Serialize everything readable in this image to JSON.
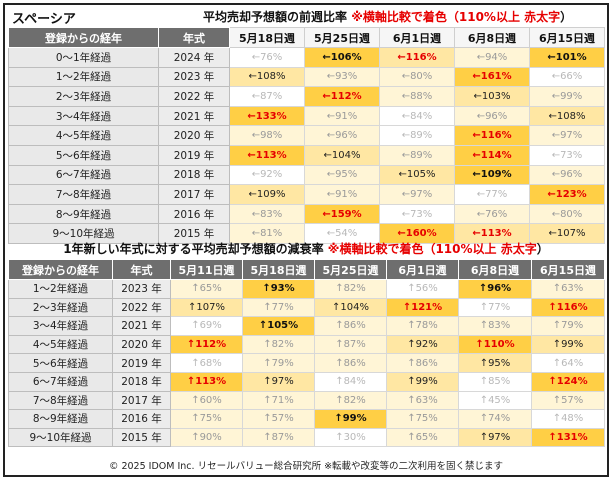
{
  "brand": "スペーシア",
  "table1": {
    "title": "平均売却予想額の前週比率",
    "note": "※横軸比較で着色（110%以上",
    "note_red": "赤太字",
    "note_end": "）",
    "headers": [
      "登録からの経年",
      "年式",
      "5月18日週",
      "5月25日週",
      "6月1日週",
      "6月8日週",
      "6月15日週"
    ],
    "rows": [
      {
        "label": "0～1年経過",
        "year": "2024 年",
        "cells": [
          "←76%",
          "←106%",
          "←116%",
          "←94%",
          "←101%"
        ],
        "levels": [
          0,
          3,
          2,
          1,
          3
        ],
        "hot": [
          false,
          false,
          true,
          false,
          false
        ]
      },
      {
        "label": "1～2年経過",
        "year": "2023 年",
        "cells": [
          "←108%",
          "←93%",
          "←80%",
          "←161%",
          "←66%"
        ],
        "levels": [
          2,
          1,
          1,
          3,
          0
        ],
        "hot": [
          false,
          false,
          false,
          true,
          false
        ]
      },
      {
        "label": "2～3年経過",
        "year": "2022 年",
        "cells": [
          "←87%",
          "←112%",
          "←88%",
          "←103%",
          "←99%"
        ],
        "levels": [
          0,
          3,
          1,
          2,
          1
        ],
        "hot": [
          false,
          true,
          false,
          false,
          false
        ]
      },
      {
        "label": "3～4年経過",
        "year": "2021 年",
        "cells": [
          "←133%",
          "←91%",
          "←84%",
          "←96%",
          "←108%"
        ],
        "levels": [
          3,
          1,
          0,
          1,
          2
        ],
        "hot": [
          true,
          false,
          false,
          false,
          false
        ]
      },
      {
        "label": "4～5年経過",
        "year": "2020 年",
        "cells": [
          "←98%",
          "←96%",
          "←89%",
          "←116%",
          "←97%"
        ],
        "levels": [
          1,
          1,
          0,
          3,
          1
        ],
        "hot": [
          false,
          false,
          false,
          true,
          false
        ]
      },
      {
        "label": "5～6年経過",
        "year": "2019 年",
        "cells": [
          "←113%",
          "←104%",
          "←89%",
          "←114%",
          "←73%"
        ],
        "levels": [
          3,
          2,
          1,
          3,
          0
        ],
        "hot": [
          true,
          false,
          false,
          true,
          false
        ]
      },
      {
        "label": "6～7年経過",
        "year": "2018 年",
        "cells": [
          "←92%",
          "←95%",
          "←105%",
          "←109%",
          "←96%"
        ],
        "levels": [
          0,
          1,
          2,
          3,
          1
        ],
        "hot": [
          false,
          false,
          false,
          false,
          false
        ]
      },
      {
        "label": "7～8年経過",
        "year": "2017 年",
        "cells": [
          "←109%",
          "←91%",
          "←97%",
          "←77%",
          "←123%"
        ],
        "levels": [
          2,
          1,
          1,
          0,
          3
        ],
        "hot": [
          false,
          false,
          false,
          false,
          true
        ]
      },
      {
        "label": "8～9年経過",
        "year": "2016 年",
        "cells": [
          "←83%",
          "←159%",
          "←73%",
          "←76%",
          "←80%"
        ],
        "levels": [
          1,
          3,
          0,
          1,
          1
        ],
        "hot": [
          false,
          true,
          false,
          false,
          false
        ]
      },
      {
        "label": "9～10年経過",
        "year": "2015 年",
        "cells": [
          "←81%",
          "←54%",
          "←160%",
          "←113%",
          "←107%"
        ],
        "levels": [
          1,
          0,
          3,
          2,
          2
        ],
        "hot": [
          false,
          false,
          true,
          true,
          false
        ]
      }
    ]
  },
  "table2": {
    "title": "1年新しい年式に対する平均売却予想額の減衰率",
    "note": "※横軸比較で着色（110%以上",
    "note_red": "赤太字",
    "note_end": "）",
    "headers": [
      "登録からの経年",
      "年式",
      "5月11日週",
      "5月18日週",
      "5月25日週",
      "6月1日週",
      "6月8日週",
      "6月15日週"
    ],
    "rows": [
      {
        "label": "1～2年経過",
        "year": "2023 年",
        "cells": [
          "↑65%",
          "↑93%",
          "↑82%",
          "↑56%",
          "↑96%",
          "↑63%"
        ],
        "levels": [
          1,
          3,
          1,
          0,
          3,
          1
        ],
        "hot": [
          false,
          false,
          false,
          false,
          false,
          false
        ]
      },
      {
        "label": "2～3年経過",
        "year": "2022 年",
        "cells": [
          "↑107%",
          "↑77%",
          "↑104%",
          "↑121%",
          "↑77%",
          "↑116%"
        ],
        "levels": [
          2,
          1,
          2,
          3,
          0,
          3
        ],
        "hot": [
          false,
          false,
          false,
          true,
          false,
          true
        ]
      },
      {
        "label": "3～4年経過",
        "year": "2021 年",
        "cells": [
          "↑69%",
          "↑105%",
          "↑86%",
          "↑78%",
          "↑83%",
          "↑79%"
        ],
        "levels": [
          0,
          3,
          1,
          1,
          1,
          1
        ],
        "hot": [
          false,
          false,
          false,
          false,
          false,
          false
        ]
      },
      {
        "label": "4～5年経過",
        "year": "2020 年",
        "cells": [
          "↑112%",
          "↑82%",
          "↑87%",
          "↑92%",
          "↑110%",
          "↑99%"
        ],
        "levels": [
          3,
          1,
          1,
          2,
          3,
          2
        ],
        "hot": [
          true,
          false,
          false,
          false,
          true,
          false
        ]
      },
      {
        "label": "5～6年経過",
        "year": "2019 年",
        "cells": [
          "↑68%",
          "↑79%",
          "↑86%",
          "↑86%",
          "↑95%",
          "↑64%"
        ],
        "levels": [
          0,
          1,
          1,
          1,
          2,
          0
        ],
        "hot": [
          false,
          false,
          false,
          false,
          false,
          false
        ]
      },
      {
        "label": "6～7年経過",
        "year": "2018 年",
        "cells": [
          "↑113%",
          "↑97%",
          "↑84%",
          "↑99%",
          "↑85%",
          "↑124%"
        ],
        "levels": [
          3,
          2,
          0,
          2,
          0,
          3
        ],
        "hot": [
          true,
          false,
          false,
          false,
          false,
          true
        ]
      },
      {
        "label": "7～8年経過",
        "year": "2017 年",
        "cells": [
          "↑60%",
          "↑71%",
          "↑82%",
          "↑63%",
          "↑45%",
          "↑57%"
        ],
        "levels": [
          1,
          1,
          1,
          1,
          0,
          1
        ],
        "hot": [
          false,
          false,
          false,
          false,
          false,
          false
        ]
      },
      {
        "label": "8～9年経過",
        "year": "2016 年",
        "cells": [
          "↑75%",
          "↑57%",
          "↑99%",
          "↑75%",
          "↑74%",
          "↑48%"
        ],
        "levels": [
          1,
          1,
          3,
          1,
          1,
          0
        ],
        "hot": [
          false,
          false,
          false,
          false,
          false,
          false
        ]
      },
      {
        "label": "9～10年経過",
        "year": "2015 年",
        "cells": [
          "↑90%",
          "↑87%",
          "↑30%",
          "↑65%",
          "↑97%",
          "↑131%"
        ],
        "levels": [
          1,
          1,
          0,
          1,
          2,
          3
        ],
        "hot": [
          false,
          false,
          false,
          false,
          false,
          true
        ]
      }
    ]
  },
  "footer": "© 2025 IDOM Inc. リセールバリュー総合研究所 ※転載や改変等の二次利用を固く禁じます"
}
